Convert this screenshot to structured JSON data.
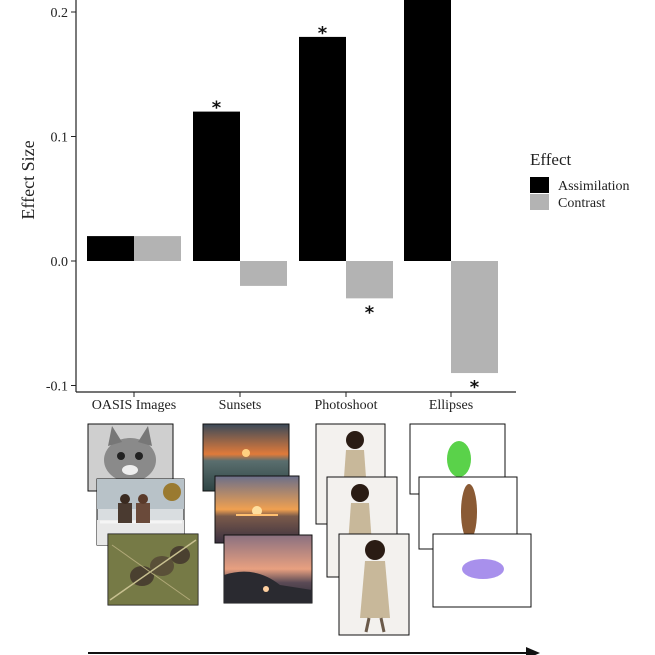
{
  "chart_data": {
    "type": "bar",
    "categories": [
      "OASIS Images",
      "Sunsets",
      "Photoshoot",
      "Ellipses"
    ],
    "series": [
      {
        "name": "Assimilation",
        "color": "#000000",
        "values": [
          0.02,
          0.12,
          0.18,
          0.21
        ]
      },
      {
        "name": "Contrast",
        "color": "#b3b3b3",
        "values": [
          0.02,
          -0.02,
          -0.03,
          -0.09
        ]
      }
    ],
    "significance": {
      "Assimilation": [
        false,
        true,
        true,
        false
      ],
      "Contrast": [
        false,
        false,
        true,
        true
      ]
    },
    "significance_marker": "*",
    "ylabel": "Effect Size",
    "ylim": [
      -0.1,
      0.2
    ],
    "yticks": [
      -0.1,
      0.0,
      0.1,
      0.2
    ],
    "ytick_labels": [
      "-0.1",
      "0.0",
      "0.1",
      "0.2"
    ],
    "legend": {
      "title": "Effect",
      "position": "right"
    },
    "grid": false
  },
  "stimuli": [
    {
      "category": "OASIS Images",
      "thumbnails": [
        "cat-photo",
        "couple-on-bench-photo",
        "pinecones-photo"
      ]
    },
    {
      "category": "Sunsets",
      "thumbnails": [
        "sunset-sea-1",
        "sunset-sea-2",
        "sunset-sea-3"
      ]
    },
    {
      "category": "Photoshoot",
      "thumbnails": [
        "model-pose-1",
        "model-pose-2",
        "model-pose-3"
      ]
    },
    {
      "category": "Ellipses",
      "thumbnails": [
        "green-ellipse",
        "brown-ellipse",
        "purple-ellipse"
      ]
    }
  ]
}
